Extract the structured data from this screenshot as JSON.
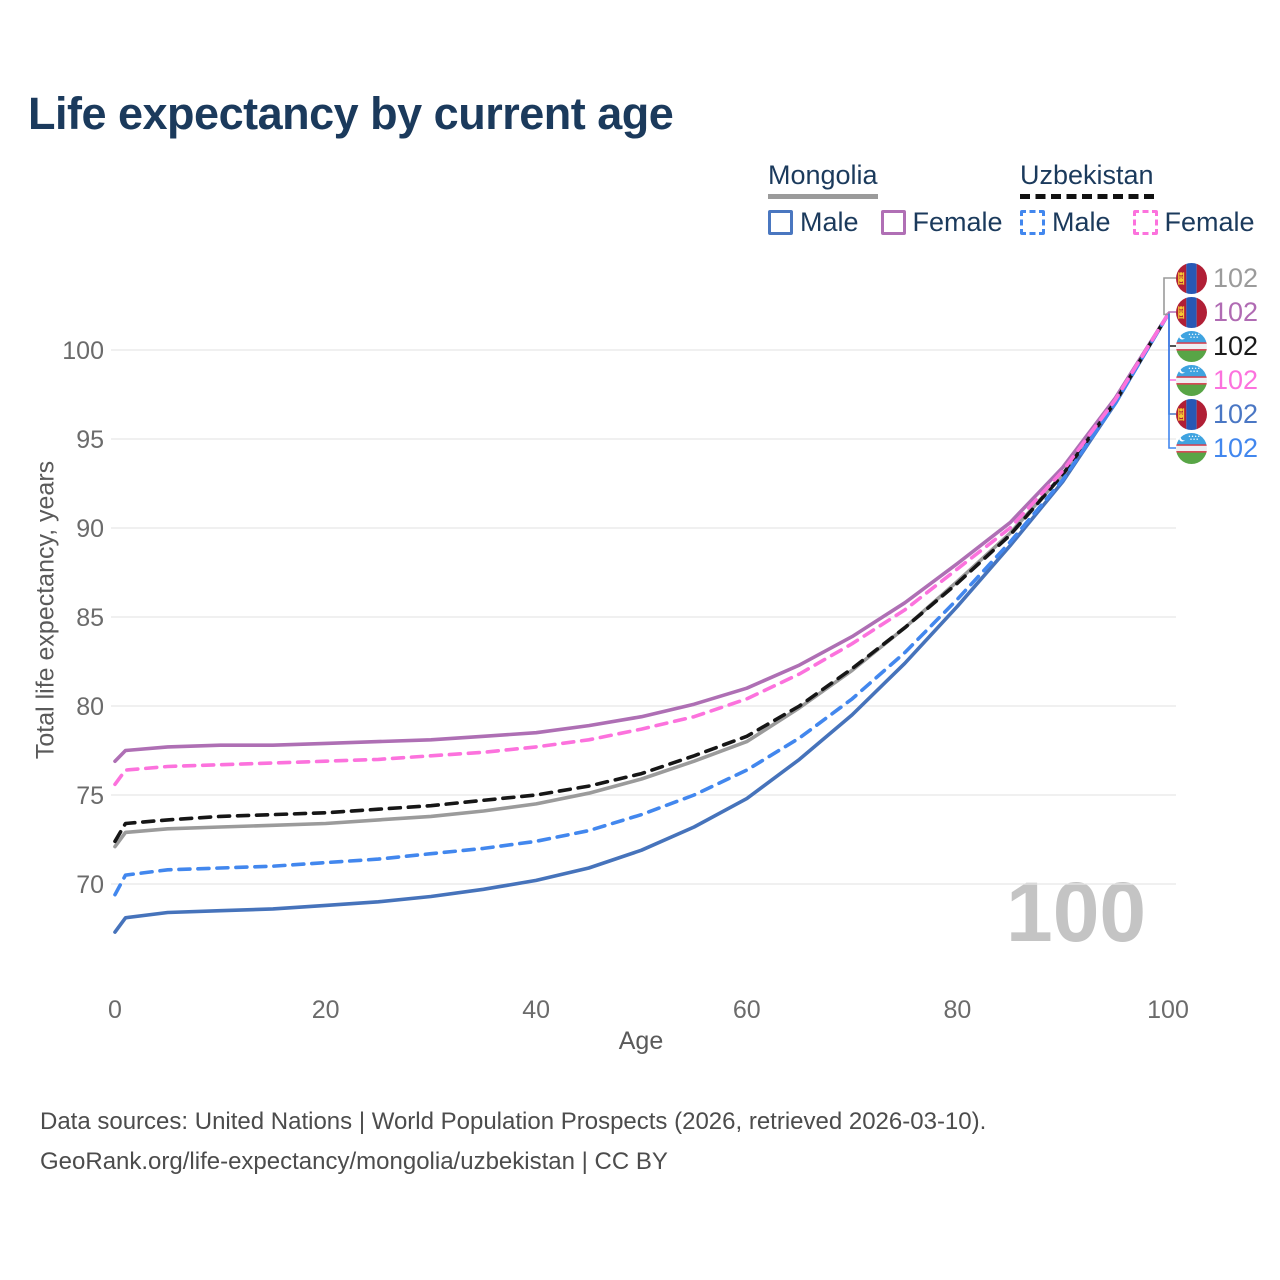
{
  "title": "Life expectancy by current age",
  "legend": {
    "groups": [
      {
        "label": "Mongolia",
        "line_style": "solid",
        "line_color": "#9b9b9b",
        "items": [
          {
            "label": "Male",
            "color": "#4a77c0",
            "dashed": false
          },
          {
            "label": "Female",
            "color": "#b06fb5",
            "dashed": false
          }
        ]
      },
      {
        "label": "Uzbekistan",
        "line_style": "dashed",
        "line_color": "#111111",
        "items": [
          {
            "label": "Male",
            "color": "#4287ee",
            "dashed": true
          },
          {
            "label": "Female",
            "color": "#fc72dd",
            "dashed": true
          }
        ]
      }
    ]
  },
  "chart_data": {
    "type": "line",
    "title": "Life expectancy by current age",
    "xlabel": "Age",
    "ylabel": "Total life expectancy, years",
    "xlim": [
      0,
      100
    ],
    "ylim": [
      66,
      105
    ],
    "xticks": [
      0,
      20,
      40,
      60,
      80,
      100
    ],
    "yticks": [
      70,
      75,
      80,
      85,
      90,
      95,
      100
    ],
    "grid": "horizontal",
    "legend_position": "top-right",
    "x": [
      0,
      1,
      5,
      10,
      15,
      20,
      25,
      30,
      35,
      40,
      45,
      50,
      55,
      60,
      65,
      70,
      75,
      80,
      85,
      90,
      95,
      100
    ],
    "series": [
      {
        "name": "Mongolia Both sexes",
        "country": "Mongolia",
        "sex": "both",
        "color": "#9b9b9b",
        "dashed": false,
        "values": [
          72.1,
          72.9,
          73.1,
          73.2,
          73.3,
          73.4,
          73.6,
          73.8,
          74.1,
          74.5,
          75.1,
          75.9,
          76.9,
          78.0,
          79.9,
          82.0,
          84.4,
          87.0,
          89.7,
          93.0,
          97.1,
          102.0
        ]
      },
      {
        "name": "Mongolia Male",
        "country": "Mongolia",
        "sex": "male",
        "color": "#4673bb",
        "dashed": false,
        "values": [
          67.3,
          68.1,
          68.4,
          68.5,
          68.6,
          68.8,
          69.0,
          69.3,
          69.7,
          70.2,
          70.9,
          71.9,
          73.2,
          74.8,
          77.0,
          79.5,
          82.4,
          85.6,
          89.0,
          92.6,
          97.0,
          102.0
        ]
      },
      {
        "name": "Mongolia Female",
        "country": "Mongolia",
        "sex": "female",
        "color": "#ae6fb4",
        "dashed": false,
        "values": [
          76.9,
          77.5,
          77.7,
          77.8,
          77.8,
          77.9,
          78.0,
          78.1,
          78.3,
          78.5,
          78.9,
          79.4,
          80.1,
          81.0,
          82.3,
          83.9,
          85.8,
          88.0,
          90.3,
          93.4,
          97.3,
          102.0
        ]
      },
      {
        "name": "Uzbekistan Both sexes",
        "country": "Uzbekistan",
        "sex": "both",
        "color": "#161616",
        "dashed": true,
        "values": [
          72.4,
          73.4,
          73.6,
          73.8,
          73.9,
          74.0,
          74.2,
          74.4,
          74.7,
          75.0,
          75.5,
          76.2,
          77.2,
          78.3,
          80.0,
          82.1,
          84.4,
          86.9,
          89.6,
          93.0,
          97.1,
          102.0
        ]
      },
      {
        "name": "Uzbekistan Male",
        "country": "Uzbekistan",
        "sex": "male",
        "color": "#4287ee",
        "dashed": true,
        "values": [
          69.4,
          70.5,
          70.8,
          70.9,
          71.0,
          71.2,
          71.4,
          71.7,
          72.0,
          72.4,
          73.0,
          73.9,
          75.0,
          76.4,
          78.2,
          80.4,
          83.0,
          86.0,
          89.2,
          92.7,
          97.0,
          102.0
        ]
      },
      {
        "name": "Uzbekistan Female",
        "country": "Uzbekistan",
        "sex": "female",
        "color": "#fc72dd",
        "dashed": true,
        "values": [
          75.6,
          76.4,
          76.6,
          76.7,
          76.8,
          76.9,
          77.0,
          77.2,
          77.4,
          77.7,
          78.1,
          78.7,
          79.4,
          80.4,
          81.8,
          83.5,
          85.4,
          87.7,
          90.0,
          93.2,
          97.2,
          102.0
        ]
      }
    ]
  },
  "end_labels": [
    {
      "flag": "mn",
      "series": "Mongolia Both sexes",
      "value": "102",
      "color": "#9b9b9b"
    },
    {
      "flag": "mn",
      "series": "Mongolia Female",
      "value": "102",
      "color": "#b06bb3"
    },
    {
      "flag": "uz",
      "series": "Uzbekistan Both sexes",
      "value": "102",
      "color": "#1a1a1a"
    },
    {
      "flag": "uz",
      "series": "Uzbekistan Female",
      "value": "102",
      "color": "#fc72dd"
    },
    {
      "flag": "mn",
      "series": "Mongolia Male",
      "value": "102",
      "color": "#4a77c4"
    },
    {
      "flag": "uz",
      "series": "Uzbekistan Male",
      "value": "102",
      "color": "#4287ee"
    }
  ],
  "watermark": {
    "text": "100"
  },
  "footer": {
    "line1": "Data sources: United Nations | World Population Prospects (2026, retrieved 2026-03-10).",
    "line2": "GeoRank.org/life-expectancy/mongolia/uzbekistan | CC BY"
  }
}
